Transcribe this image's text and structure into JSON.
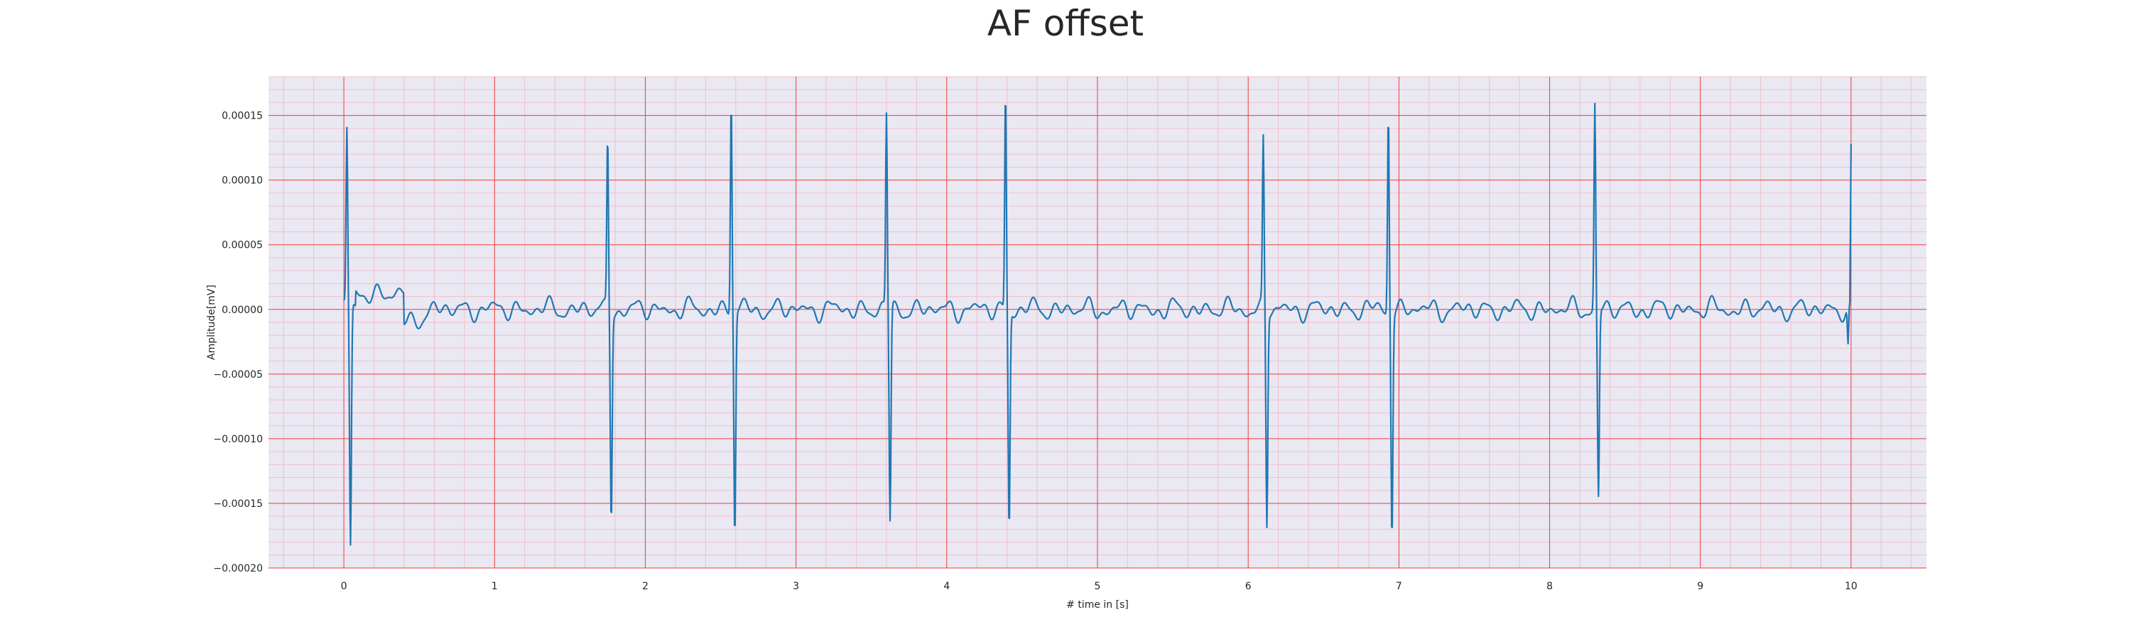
{
  "chart_data": {
    "type": "line",
    "title": "AF offset",
    "xlabel": "# time in [s]",
    "ylabel": "Amplitude[mV]",
    "xlim": [
      -0.5,
      10.5
    ],
    "ylim": [
      -0.0002,
      0.00018
    ],
    "x_ticks": [
      0,
      1,
      2,
      3,
      4,
      5,
      6,
      7,
      8,
      9,
      10
    ],
    "x_tick_labels": [
      "0",
      "1",
      "2",
      "3",
      "4",
      "5",
      "6",
      "7",
      "8",
      "9",
      "10"
    ],
    "y_ticks": [
      -0.0002,
      -0.00015,
      -0.0001,
      -5e-05,
      0.0,
      5e-05,
      0.0001,
      0.00015
    ],
    "y_tick_labels": [
      "−0.00020",
      "−0.00015",
      "−0.00010",
      "−0.00005",
      "0.00000",
      "0.00005",
      "0.00010",
      "0.00015"
    ],
    "grid": "on (major and minor, red ECG-style)",
    "series": [
      {
        "color": "#1f77b4",
        "sampling_step": 0.004,
        "x_start": 0.0,
        "x_end": 10.0,
        "beats": [
          {
            "t": 0.02,
            "peak": 0.000137,
            "trough": -0.000185
          },
          {
            "t": 1.75,
            "peak": 0.00013,
            "trough": -0.00016
          },
          {
            "t": 2.57,
            "peak": 0.000166,
            "trough": -0.000173
          },
          {
            "t": 3.6,
            "peak": 0.00015,
            "trough": -0.000165
          },
          {
            "t": 4.39,
            "peak": 0.000168,
            "trough": -0.000169
          },
          {
            "t": 6.1,
            "peak": 0.000128,
            "trough": -0.000166
          },
          {
            "t": 6.93,
            "peak": 0.000156,
            "trough": -0.000171
          },
          {
            "t": 8.3,
            "peak": 0.000158,
            "trough": -0.000145
          }
        ],
        "end_value": 0.000128
      }
    ]
  }
}
